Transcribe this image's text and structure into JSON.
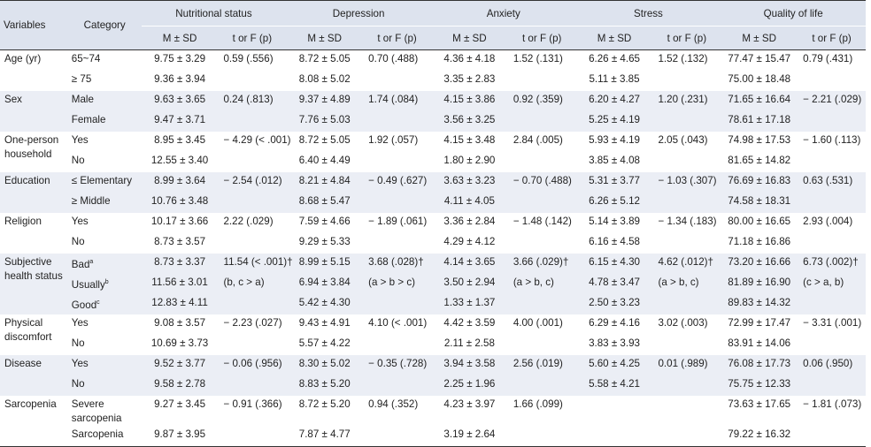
{
  "headers": {
    "variables": "Variables",
    "category": "Category",
    "groups": [
      "Nutritional status",
      "Depression",
      "Anxiety",
      "Stress",
      "Quality of life"
    ],
    "msd": "M ± SD",
    "tf": "t or F (p)"
  },
  "rows": [
    {
      "var": "Age (yr)",
      "cat": "65~74",
      "v": [
        "9.75 ± 3.29",
        "0.59 (.556)",
        "8.72 ± 5.05",
        "0.70 (.488)",
        "4.36 ± 4.18",
        "1.52 (.131)",
        "6.26 ± 4.65",
        "1.52 (.132)",
        "77.47 ± 15.47",
        "0.79 (.431)"
      ]
    },
    {
      "var": "",
      "cat": "≥ 75",
      "v": [
        "9.36 ± 3.94",
        "",
        "8.08 ± 5.02",
        "",
        "3.35 ± 2.83",
        "",
        "5.11 ± 3.85",
        "",
        "75.00 ± 18.48",
        ""
      ]
    },
    {
      "var": "Sex",
      "cat": "Male",
      "v": [
        "9.63 ± 3.65",
        "0.24 (.813)",
        "9.37 ± 4.89",
        "1.74 (.084)",
        "4.15 ± 3.86",
        "0.92 (.359)",
        "6.20 ± 4.27",
        "1.20 (.231)",
        "71.65 ± 16.64",
        "− 2.21 (.029)"
      ]
    },
    {
      "var": "",
      "cat": "Female",
      "v": [
        "9.47 ± 3.71",
        "",
        "7.76 ± 5.03",
        "",
        "3.56 ± 3.25",
        "",
        "5.25 ± 4.19",
        "",
        "78.61 ± 17.18",
        ""
      ]
    },
    {
      "var": "One-person household",
      "cat": "Yes",
      "v": [
        "8.95 ± 3.45",
        "− 4.29 (< .001)",
        "8.72 ± 5.05",
        "1.92 (.057)",
        "4.15 ± 3.48",
        "2.84 (.005)",
        "5.93 ± 4.19",
        "2.05 (.043)",
        "74.98 ± 17.53",
        "− 1.60 (.113)"
      ]
    },
    {
      "var": "",
      "cat": "No",
      "v": [
        "12.55 ± 3.40",
        "",
        "6.40 ± 4.49",
        "",
        "1.80 ± 2.90",
        "",
        "3.85 ± 4.08",
        "",
        "81.65 ± 14.82",
        ""
      ]
    },
    {
      "var": "Education",
      "cat": "≤ Elementary",
      "v": [
        "8.99 ± 3.64",
        "− 2.54 (.012)",
        "8.21 ± 4.84",
        "− 0.49 (.627)",
        "3.63 ± 3.23",
        "− 0.70 (.488)",
        "5.31 ± 3.77",
        "− 1.03 (.307)",
        "76.69 ± 16.83",
        "0.63 (.531)"
      ]
    },
    {
      "var": "",
      "cat": "≥ Middle",
      "v": [
        "10.76 ± 3.48",
        "",
        "8.68 ± 5.47",
        "",
        "4.11 ± 4.05",
        "",
        "6.26 ± 5.12",
        "",
        "74.58 ± 18.31",
        ""
      ]
    },
    {
      "var": "Religion",
      "cat": "Yes",
      "v": [
        "10.17 ± 3.66",
        "2.22 (.029)",
        "7.59 ± 4.66",
        "− 1.89 (.061)",
        "3.36 ± 2.84",
        "− 1.48 (.142)",
        "5.14 ± 3.89",
        "− 1.34 (.183)",
        "80.00 ± 16.65",
        "2.93 (.004)"
      ]
    },
    {
      "var": "",
      "cat": "No",
      "v": [
        "8.73 ± 3.57",
        "",
        "9.29 ± 5.33",
        "",
        "4.29 ± 4.12",
        "",
        "6.16 ± 4.58",
        "",
        "71.18 ± 16.86",
        ""
      ]
    },
    {
      "var": "Subjective health status",
      "cat": "Bad",
      "csup": "a",
      "v": [
        "8.73 ± 3.37",
        "11.54 (< .001)†",
        "8.99 ± 5.15",
        "3.68 (.028)†",
        "4.14 ± 3.65",
        "3.66 (.029)†",
        "6.15 ± 4.30",
        "4.62 (.012)†",
        "73.20 ± 16.66",
        "6.73 (.002)†"
      ]
    },
    {
      "var": "",
      "cat": "Usually",
      "csup": "b",
      "v": [
        "11.56 ± 3.01",
        "(b, c > a)",
        "6.94 ± 3.84",
        "(a > b > c)",
        "3.50 ± 2.94",
        "(a > b, c)",
        "4.78 ± 3.47",
        "(a > b, c)",
        "81.89 ± 16.90",
        "(c > a, b)"
      ]
    },
    {
      "var": "",
      "cat": "Good",
      "csup": "c",
      "v": [
        "12.83 ± 4.11",
        "",
        "5.42 ± 4.30",
        "",
        "1.33 ± 1.37",
        "",
        "2.50 ± 3.23",
        "",
        "89.83 ± 14.32",
        ""
      ]
    },
    {
      "var": "Physical discomfort",
      "cat": "Yes",
      "v": [
        "9.08 ± 3.57",
        "− 2.23 (.027)",
        "9.43 ± 4.91",
        "4.10 (< .001)",
        "4.42 ± 3.59",
        "4.00 (.001)",
        "6.29 ± 4.16",
        "3.02 (.003)",
        "72.99 ± 17.47",
        "− 3.31 (.001)"
      ]
    },
    {
      "var": "",
      "cat": "No",
      "v": [
        "10.69 ± 3.73",
        "",
        "5.57 ± 4.22",
        "",
        "2.11 ± 2.58",
        "",
        "3.83 ± 3.93",
        "",
        "83.91 ± 14.06",
        ""
      ]
    },
    {
      "var": "Disease",
      "cat": "Yes",
      "v": [
        "9.52 ± 3.77",
        "− 0.06 (.956)",
        "8.30 ± 5.02",
        "− 0.35 (.728)",
        "3.94 ± 3.58",
        "2.56 (.019)",
        "5.60 ± 4.25",
        "0.01 (.989)",
        "76.08 ± 17.73",
        "0.06 (.950)"
      ]
    },
    {
      "var": "",
      "cat": "No",
      "v": [
        "9.58 ± 2.78",
        "",
        "8.83 ± 5.20",
        "",
        "2.25 ± 1.96",
        "",
        "5.58 ± 4.21",
        "",
        "75.75 ± 12.33",
        ""
      ]
    },
    {
      "var": "Sarcopenia",
      "cat": "Severe sarcopenia",
      "v": [
        "9.27 ± 3.45",
        "− 0.91 (.366)",
        "8.72 ± 5.20",
        "0.94 (.352)",
        "4.23 ± 3.97",
        "1.66 (.099)",
        "",
        "",
        "73.63 ± 17.65",
        "− 1.81 (.073)"
      ]
    },
    {
      "var": "",
      "cat": "Sarcopenia",
      "v": [
        "9.87 ± 3.95",
        "",
        "7.87 ± 4.77",
        "",
        "3.19 ± 2.64",
        "",
        "",
        "",
        "79.22 ± 16.32",
        ""
      ]
    }
  ]
}
